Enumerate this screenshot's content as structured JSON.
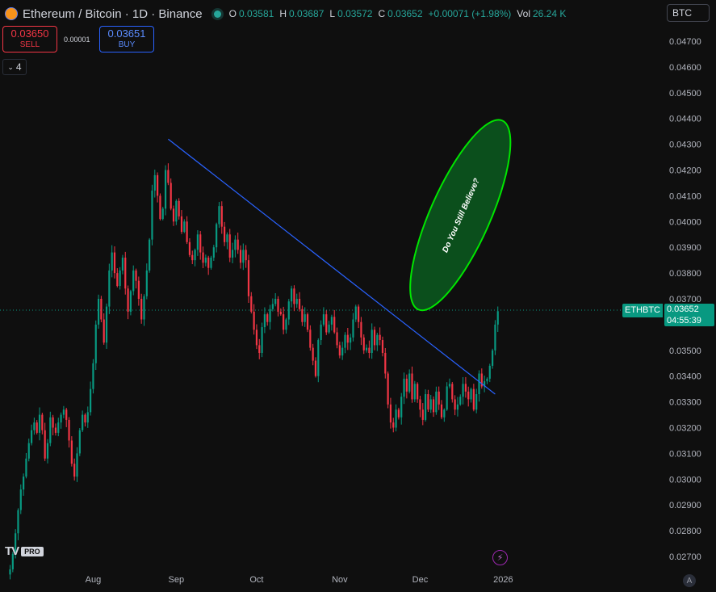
{
  "header": {
    "title": "Ethereum / Bitcoin · 1D · Binance",
    "ohlc": [
      {
        "k": "O",
        "v": "0.03581"
      },
      {
        "k": "H",
        "v": "0.03687"
      },
      {
        "k": "L",
        "v": "0.03572"
      },
      {
        "k": "C",
        "v": "0.03652"
      }
    ],
    "change": "+0.00071 (+1.98%)",
    "vol_label": "Vol",
    "vol_value": "26.24 K"
  },
  "currency_button": {
    "label": "BTC",
    "chevron": "chevron-down-icon"
  },
  "trade": {
    "sell_price": "0.03650",
    "sell_label": "SELL",
    "spread": "0.00001",
    "buy_price": "0.03651",
    "buy_label": "BUY"
  },
  "indicators_toggle": {
    "count": "4"
  },
  "price_tag": {
    "symbol": "ETHBTC",
    "price": "0.03652",
    "countdown": "04:55:39"
  },
  "annotation_text": "Do You Still Believe?",
  "icons": {
    "bolt": "bolt-icon",
    "auto": "A"
  },
  "colors": {
    "up": "#089981",
    "down": "#f23645",
    "trendline": "#2962ff",
    "ellipse": "#00e600",
    "ellipse_fill": "#0b4f1c",
    "background": "#0f0f0f"
  },
  "chart_data": {
    "type": "candlestick",
    "symbol": "ETHBTC",
    "y_ticks": [
      "0.04700",
      "0.04600",
      "0.04500",
      "0.04400",
      "0.04300",
      "0.04200",
      "0.04100",
      "0.04000",
      "0.03900",
      "0.03800",
      "0.03700",
      "0.03500",
      "0.03400",
      "0.03300",
      "0.03200",
      "0.03100",
      "0.03000",
      "0.02900",
      "0.02800",
      "0.02700"
    ],
    "ylim": [
      0.0265,
      0.0475
    ],
    "x_ticks": [
      "Aug",
      "Sep",
      "Oct",
      "Nov",
      "Dec",
      "2026"
    ],
    "x_tick_days": [
      31,
      62,
      92,
      123,
      153,
      184
    ],
    "last_close": 0.03652,
    "trendline": {
      "from": {
        "day": 59,
        "price": 0.0432
      },
      "to": {
        "day": 181,
        "price": 0.0333
      }
    },
    "ellipse_annotation": {
      "center_day": 168,
      "center_price": 0.04025,
      "label": "Do You Still Believe?"
    },
    "closes": [
      0.0265,
      0.0271,
      0.0279,
      0.0288,
      0.0296,
      0.0301,
      0.0308,
      0.0314,
      0.0319,
      0.0322,
      0.0318,
      0.0325,
      0.0319,
      0.0308,
      0.0314,
      0.0324,
      0.032,
      0.0318,
      0.0322,
      0.0325,
      0.0327,
      0.0323,
      0.0315,
      0.0306,
      0.0301,
      0.031,
      0.0319,
      0.0325,
      0.0322,
      0.0326,
      0.0335,
      0.0345,
      0.036,
      0.037,
      0.0362,
      0.0353,
      0.0367,
      0.0381,
      0.0388,
      0.038,
      0.0375,
      0.0381,
      0.0386,
      0.0374,
      0.0365,
      0.0373,
      0.0381,
      0.0377,
      0.037,
      0.0362,
      0.0371,
      0.0381,
      0.0393,
      0.0412,
      0.0418,
      0.041,
      0.0401,
      0.0405,
      0.042,
      0.0415,
      0.0405,
      0.04,
      0.0408,
      0.0402,
      0.0396,
      0.04,
      0.0392,
      0.0387,
      0.0385,
      0.0389,
      0.0395,
      0.0388,
      0.0384,
      0.0386,
      0.0382,
      0.0386,
      0.039,
      0.0399,
      0.0406,
      0.0398,
      0.0392,
      0.0395,
      0.0386,
      0.0389,
      0.0393,
      0.0389,
      0.0384,
      0.0389,
      0.0385,
      0.0371,
      0.0365,
      0.0358,
      0.0352,
      0.0349,
      0.0359,
      0.0364,
      0.0361,
      0.0366,
      0.0368,
      0.037,
      0.0365,
      0.0364,
      0.0358,
      0.0362,
      0.0369,
      0.0374,
      0.0368,
      0.037,
      0.0366,
      0.0361,
      0.0364,
      0.0358,
      0.0351,
      0.0346,
      0.034,
      0.0354,
      0.036,
      0.0364,
      0.0357,
      0.036,
      0.0363,
      0.0357,
      0.0352,
      0.0348,
      0.0351,
      0.0356,
      0.0353,
      0.0355,
      0.0362,
      0.0367,
      0.0361,
      0.0355,
      0.035,
      0.0351,
      0.0349,
      0.0358,
      0.0352,
      0.0356,
      0.0354,
      0.0349,
      0.0341,
      0.0329,
      0.0322,
      0.032,
      0.0327,
      0.0324,
      0.0332,
      0.0339,
      0.0334,
      0.0341,
      0.0331,
      0.0337,
      0.0331,
      0.0327,
      0.0323,
      0.0333,
      0.0327,
      0.0331,
      0.0326,
      0.0334,
      0.0329,
      0.0324,
      0.0327,
      0.0336,
      0.0337,
      0.0331,
      0.0327,
      0.0329,
      0.0332,
      0.0337,
      0.0334,
      0.0331,
      0.0335,
      0.0327,
      0.0333,
      0.0341,
      0.0336,
      0.0338,
      0.0339,
      0.0344,
      0.035,
      0.036,
      0.03652
    ]
  }
}
